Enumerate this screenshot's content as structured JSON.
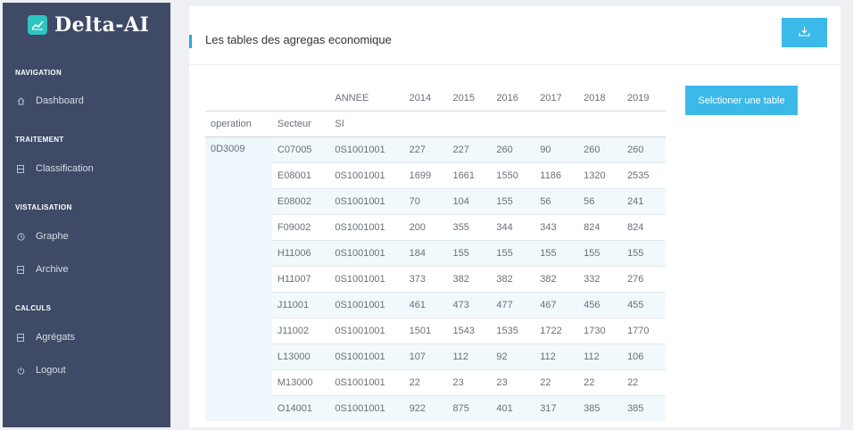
{
  "brand": {
    "name": "Delta-AI",
    "icon": "chart-line-icon",
    "accent": "#2ec4c0"
  },
  "sidebar": {
    "background": "#3e4a66",
    "sections": [
      {
        "title": "NAVIGATION",
        "items": [
          {
            "label": "Dashboard",
            "icon": "home-icon"
          }
        ]
      },
      {
        "title": "TRAITEMENT",
        "items": [
          {
            "label": "Classification",
            "icon": "list-icon"
          }
        ]
      },
      {
        "title": "VISTALISATION",
        "items": [
          {
            "label": "Graphe",
            "icon": "clock-icon"
          },
          {
            "label": "Archive",
            "icon": "list-icon"
          }
        ]
      },
      {
        "title": "CALCULS",
        "items": [
          {
            "label": "Agrégats",
            "icon": "list-icon"
          },
          {
            "label": "Logout",
            "icon": "power-icon"
          }
        ]
      }
    ]
  },
  "main": {
    "title": "Les tables des agregas economique",
    "download_icon": "download-icon",
    "select_button_label": "Selctioner une table",
    "accent": "#3bb9e9"
  },
  "table": {
    "header_row1": {
      "annee": "ANNEE",
      "years": [
        "2014",
        "2015",
        "2016",
        "2017",
        "2018",
        "2019"
      ]
    },
    "header_row2": {
      "operation": "operation",
      "secteur": "Secteur",
      "si": "SI"
    },
    "operation": "0D3009",
    "rows": [
      {
        "secteur": "C07005",
        "si": "0S1001001",
        "values": [
          "227",
          "227",
          "260",
          "90",
          "260",
          "260"
        ]
      },
      {
        "secteur": "E08001",
        "si": "0S1001001",
        "values": [
          "1699",
          "1661",
          "1550",
          "1186",
          "1320",
          "2535"
        ]
      },
      {
        "secteur": "E08002",
        "si": "0S1001001",
        "values": [
          "70",
          "104",
          "155",
          "56",
          "56",
          "241"
        ]
      },
      {
        "secteur": "F09002",
        "si": "0S1001001",
        "values": [
          "200",
          "355",
          "344",
          "343",
          "824",
          "824"
        ]
      },
      {
        "secteur": "H11006",
        "si": "0S1001001",
        "values": [
          "184",
          "155",
          "155",
          "155",
          "155",
          "155"
        ]
      },
      {
        "secteur": "H11007",
        "si": "0S1001001",
        "values": [
          "373",
          "382",
          "382",
          "382",
          "332",
          "276"
        ]
      },
      {
        "secteur": "J11001",
        "si": "0S1001001",
        "values": [
          "461",
          "473",
          "477",
          "467",
          "456",
          "455"
        ]
      },
      {
        "secteur": "J11002",
        "si": "0S1001001",
        "values": [
          "1501",
          "1543",
          "1535",
          "1722",
          "1730",
          "1770"
        ]
      },
      {
        "secteur": "L13000",
        "si": "0S1001001",
        "values": [
          "107",
          "112",
          "92",
          "112",
          "112",
          "106"
        ]
      },
      {
        "secteur": "M13000",
        "si": "0S1001001",
        "values": [
          "22",
          "23",
          "23",
          "22",
          "22",
          "22"
        ]
      },
      {
        "secteur": "O14001",
        "si": "0S1001001",
        "values": [
          "922",
          "875",
          "401",
          "317",
          "385",
          "385"
        ]
      }
    ]
  }
}
